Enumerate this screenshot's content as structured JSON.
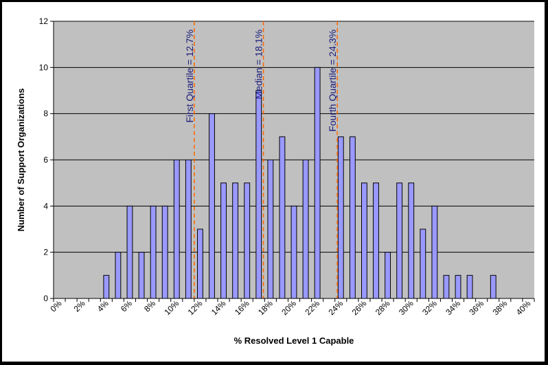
{
  "chart_data": {
    "type": "bar",
    "xlabel": "% Resolved Level 1 Capable",
    "ylabel": "Number of Support Organizations",
    "ylim": [
      0,
      12
    ],
    "yticks": [
      0,
      2,
      4,
      6,
      8,
      10,
      12
    ],
    "xlim": [
      0,
      41
    ],
    "xtick_labels": [
      "0%",
      "2%",
      "4%",
      "6%",
      "8%",
      "10%",
      "12%",
      "14%",
      "16%",
      "18%",
      "20%",
      "22%",
      "24%",
      "26%",
      "28%",
      "30%",
      "32%",
      "34%",
      "36%",
      "38%",
      "40%"
    ],
    "categories": [
      "0%",
      "1%",
      "2%",
      "3%",
      "4%",
      "5%",
      "6%",
      "7%",
      "8%",
      "9%",
      "10%",
      "11%",
      "12%",
      "13%",
      "14%",
      "15%",
      "16%",
      "17%",
      "18%",
      "19%",
      "20%",
      "21%",
      "22%",
      "23%",
      "24%",
      "25%",
      "26%",
      "27%",
      "28%",
      "29%",
      "30%",
      "31%",
      "32%",
      "33%",
      "34%",
      "35%",
      "36%",
      "37%",
      "38%",
      "39%",
      "40%"
    ],
    "values": [
      0,
      0,
      0,
      0,
      1,
      2,
      4,
      2,
      4,
      4,
      6,
      6,
      3,
      8,
      5,
      5,
      5,
      9,
      6,
      7,
      4,
      6,
      10,
      0,
      7,
      7,
      5,
      5,
      2,
      5,
      5,
      3,
      4,
      1,
      1,
      1,
      0,
      1,
      0,
      0,
      0
    ],
    "grid": "horizontal",
    "bar_color": "#9999ff",
    "plot_background": "#c0c0c0",
    "annotation_color": "#1a1a7a",
    "reference_line_color": "#ff6600",
    "annotations": [
      {
        "label": "First Quartile = 12.7%",
        "x": 12.0
      },
      {
        "label": "Median = 18.1%",
        "x": 17.9
      },
      {
        "label": "Fourth Quartile = 24.3%",
        "x": 24.2
      }
    ]
  }
}
